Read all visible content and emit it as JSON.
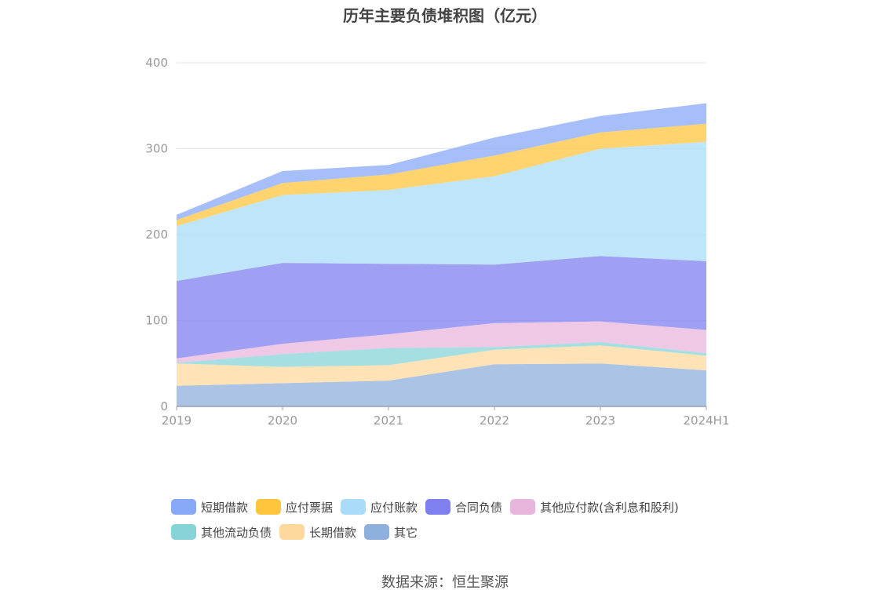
{
  "chart_data": {
    "type": "area",
    "stacked": true,
    "title": "历年主要负债堆积图（亿元）",
    "categories": [
      "2019",
      "2020",
      "2021",
      "2022",
      "2023",
      "2024H1"
    ],
    "ylim": [
      0,
      400
    ],
    "yticks": [
      "0",
      "100",
      "200",
      "300",
      "400"
    ],
    "grid": true,
    "legend_position": "bottom",
    "series": [
      {
        "name": "其它",
        "color": "#8fb0dc",
        "values": [
          24,
          27,
          30,
          49,
          50,
          42
        ]
      },
      {
        "name": "长期借款",
        "color": "#ffd89e",
        "values": [
          26,
          19,
          18,
          17,
          21,
          17
        ]
      },
      {
        "name": "其他流动负债",
        "color": "#87d4d8",
        "values": [
          1,
          15,
          20,
          3,
          4,
          3
        ]
      },
      {
        "name": "其他应付款(含利息和股利)",
        "color": "#e8b6dc",
        "values": [
          5,
          12,
          16,
          28,
          24,
          27
        ]
      },
      {
        "name": "合同负债",
        "color": "#7f7ff0",
        "values": [
          90,
          94,
          82,
          68,
          76,
          80
        ]
      },
      {
        "name": "应付账款",
        "color": "#a9dcf8",
        "values": [
          64,
          79,
          86,
          103,
          125,
          139
        ]
      },
      {
        "name": "应付票据",
        "color": "#ffc63d",
        "values": [
          7,
          14,
          18,
          24,
          19,
          21
        ]
      },
      {
        "name": "短期借款",
        "color": "#88a8f8",
        "values": [
          6,
          14,
          11,
          21,
          19,
          24
        ]
      }
    ]
  },
  "legend_rows": [
    [
      {
        "label": "短期借款",
        "color": "#88a8f8"
      },
      {
        "label": "应付票据",
        "color": "#ffc63d"
      },
      {
        "label": "应付账款",
        "color": "#a9dcf8"
      },
      {
        "label": "合同负债",
        "color": "#7f7ff0"
      },
      {
        "label": "其他应付款(含利息和股利)",
        "color": "#e8b6dc"
      }
    ],
    [
      {
        "label": "其他流动负债",
        "color": "#87d4d8"
      },
      {
        "label": "长期借款",
        "color": "#ffd89e"
      },
      {
        "label": "其它",
        "color": "#8fb0dc"
      }
    ]
  ],
  "source": "数据来源：恒生聚源"
}
